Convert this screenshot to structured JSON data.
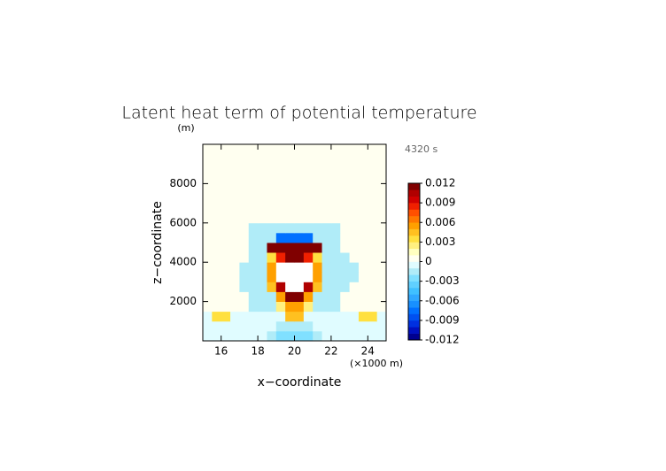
{
  "chart_data": {
    "type": "heatmap",
    "title": "Latent heat term of potential temperature",
    "time_label": "4320 s",
    "x_label": "x−coordinate",
    "x_unit": "(×1000 m)",
    "y_label": "z−coordinate",
    "y_unit": "(m)",
    "xlim": [
      15,
      25
    ],
    "xticks": [
      16,
      18,
      20,
      22,
      24
    ],
    "ylim": [
      0,
      10000
    ],
    "yticks": [
      2000,
      4000,
      6000,
      8000
    ],
    "x": [
      15.25,
      15.75,
      16.25,
      16.75,
      17.25,
      17.75,
      18.25,
      18.75,
      19.25,
      19.75,
      20.25,
      20.75,
      21.25,
      21.75,
      22.25,
      22.75,
      23.25,
      23.75,
      24.25,
      24.75
    ],
    "y": [
      250,
      750,
      1250,
      1750,
      2250,
      2750,
      3250,
      3750,
      4250,
      4750,
      5250,
      5750,
      6250,
      6750,
      7250,
      7750,
      8250,
      8750,
      9250,
      9750
    ],
    "z": [
      [
        -0.0005,
        -0.0005,
        -0.0005,
        -0.0005,
        -0.0005,
        -0.0005,
        -0.0005,
        -0.0015,
        -0.0025,
        -0.0025,
        -0.0025,
        -0.0025,
        -0.0015,
        -0.0005,
        -0.0005,
        -0.0005,
        -0.0005,
        -0.0005,
        -0.0005,
        -0.0005
      ],
      [
        -0.0005,
        -0.0005,
        -0.0005,
        -0.0005,
        -0.0005,
        -0.0005,
        -0.0005,
        -0.0005,
        -0.0015,
        -0.0015,
        -0.0015,
        -0.0015,
        -0.0005,
        -0.0005,
        -0.0005,
        -0.0005,
        -0.0005,
        -0.0005,
        -0.0005,
        -0.0005
      ],
      [
        -0.0005,
        0.003,
        0.003,
        -0.0005,
        -0.0005,
        -0.0005,
        -0.0005,
        -0.0005,
        -0.0005,
        0.004,
        0.004,
        -0.0005,
        -0.0005,
        -0.0005,
        -0.0005,
        -0.0005,
        -0.0005,
        0.003,
        0.003,
        -0.0005
      ],
      [
        0.0005,
        0.0005,
        0.0005,
        0.0005,
        0.0005,
        -0.0015,
        -0.0015,
        -0.0015,
        0.002,
        0.005,
        0.005,
        0.002,
        -0.0015,
        -0.0015,
        -0.0015,
        0.0005,
        0.0005,
        0.0005,
        0.0005,
        0.0005
      ],
      [
        0.0005,
        0.0005,
        0.0005,
        0.0005,
        0.0005,
        -0.0015,
        -0.0015,
        -0.0015,
        0.005,
        0.011,
        0.011,
        0.005,
        -0.0015,
        -0.0015,
        -0.0015,
        0.0005,
        0.0005,
        0.0005,
        0.0005,
        0.0005
      ],
      [
        0.0005,
        0.0005,
        0.0005,
        0.0005,
        -0.0015,
        -0.0015,
        -0.0015,
        0.004,
        0.01,
        0.015,
        0.015,
        0.01,
        0.004,
        -0.0015,
        -0.0015,
        -0.0015,
        0.0005,
        0.0005,
        0.0005,
        0.0005
      ],
      [
        0.0005,
        0.0005,
        0.0005,
        0.0005,
        -0.0015,
        -0.0015,
        -0.0015,
        0.005,
        0.012,
        0.02,
        0.02,
        0.012,
        0.005,
        -0.0015,
        -0.0015,
        -0.0015,
        -0.0015,
        0.0005,
        0.0005,
        0.0005
      ],
      [
        0.0005,
        0.0005,
        0.0005,
        0.0005,
        -0.0015,
        -0.0015,
        -0.0015,
        0.005,
        0.012,
        0.02,
        0.02,
        0.012,
        0.005,
        -0.0015,
        -0.0015,
        -0.0015,
        -0.0015,
        0.0005,
        0.0005,
        0.0005
      ],
      [
        0.0005,
        0.0005,
        0.0005,
        0.0005,
        0.0005,
        -0.0015,
        -0.0015,
        0.003,
        0.008,
        0.011,
        0.011,
        0.008,
        0.003,
        -0.0015,
        -0.0015,
        -0.0015,
        0.0005,
        0.0005,
        0.0005,
        0.0005
      ],
      [
        0.0005,
        0.0005,
        0.0005,
        0.0005,
        0.0005,
        -0.0015,
        -0.0015,
        0.011,
        0.011,
        0.011,
        0.011,
        0.011,
        0.011,
        -0.0015,
        -0.0015,
        0.0005,
        0.0005,
        0.0005,
        0.0005,
        0.0005
      ],
      [
        0.0005,
        0.0005,
        0.0005,
        0.0005,
        0.0005,
        -0.0015,
        -0.0015,
        -0.0015,
        -0.008,
        -0.008,
        -0.008,
        -0.008,
        -0.0015,
        -0.0015,
        -0.0015,
        0.0005,
        0.0005,
        0.0005,
        0.0005,
        0.0005
      ],
      [
        0.0005,
        0.0005,
        0.0005,
        0.0005,
        0.0005,
        -0.0015,
        -0.0015,
        -0.0015,
        -0.0015,
        -0.0015,
        -0.0015,
        -0.0015,
        -0.0015,
        -0.0015,
        -0.0015,
        0.0005,
        0.0005,
        0.0005,
        0.0005,
        0.0005
      ],
      [
        0.0005,
        0.0005,
        0.0005,
        0.0005,
        0.0005,
        0.0005,
        0.0005,
        0.0005,
        0.0005,
        0.0005,
        0.0005,
        0.0005,
        0.0005,
        0.0005,
        0.0005,
        0.0005,
        0.0005,
        0.0005,
        0.0005,
        0.0005
      ],
      [
        0.0005,
        0.0005,
        0.0005,
        0.0005,
        0.0005,
        0.0005,
        0.0005,
        0.0005,
        0.0005,
        0.0005,
        0.0005,
        0.0005,
        0.0005,
        0.0005,
        0.0005,
        0.0005,
        0.0005,
        0.0005,
        0.0005,
        0.0005
      ],
      [
        0.0005,
        0.0005,
        0.0005,
        0.0005,
        0.0005,
        0.0005,
        0.0005,
        0.0005,
        0.0005,
        0.0005,
        0.0005,
        0.0005,
        0.0005,
        0.0005,
        0.0005,
        0.0005,
        0.0005,
        0.0005,
        0.0005,
        0.0005
      ],
      [
        0.0005,
        0.0005,
        0.0005,
        0.0005,
        0.0005,
        0.0005,
        0.0005,
        0.0005,
        0.0005,
        0.0005,
        0.0005,
        0.0005,
        0.0005,
        0.0005,
        0.0005,
        0.0005,
        0.0005,
        0.0005,
        0.0005,
        0.0005
      ],
      [
        0.0005,
        0.0005,
        0.0005,
        0.0005,
        0.0005,
        0.0005,
        0.0005,
        0.0005,
        0.0005,
        0.0005,
        0.0005,
        0.0005,
        0.0005,
        0.0005,
        0.0005,
        0.0005,
        0.0005,
        0.0005,
        0.0005,
        0.0005
      ],
      [
        0.0005,
        0.0005,
        0.0005,
        0.0005,
        0.0005,
        0.0005,
        0.0005,
        0.0005,
        0.0005,
        0.0005,
        0.0005,
        0.0005,
        0.0005,
        0.0005,
        0.0005,
        0.0005,
        0.0005,
        0.0005,
        0.0005,
        0.0005
      ],
      [
        0.0005,
        0.0005,
        0.0005,
        0.0005,
        0.0005,
        0.0005,
        0.0005,
        0.0005,
        0.0005,
        0.0005,
        0.0005,
        0.0005,
        0.0005,
        0.0005,
        0.0005,
        0.0005,
        0.0005,
        0.0005,
        0.0005,
        0.0005
      ],
      [
        0.0005,
        0.0005,
        0.0005,
        0.0005,
        0.0005,
        0.0005,
        0.0005,
        0.0005,
        0.0005,
        0.0005,
        0.0005,
        0.0005,
        0.0005,
        0.0005,
        0.0005,
        0.0005,
        0.0005,
        0.0005,
        0.0005,
        0.0005
      ]
    ],
    "clim": [
      -0.012,
      0.012
    ],
    "cticks": [
      -0.012,
      -0.009,
      -0.006,
      -0.003,
      0,
      0.003,
      0.006,
      0.009,
      0.012
    ],
    "colors": [
      "#000090",
      "#0010c0",
      "#0030e0",
      "#0050f0",
      "#0070ff",
      "#1890ff",
      "#30a8ff",
      "#40c0ff",
      "#60d0ff",
      "#80e0ff",
      "#b0ecf8",
      "#e0fcff",
      "#fffff0",
      "#ffffc0",
      "#fff080",
      "#ffe040",
      "#ffc020",
      "#ffa000",
      "#ff7800",
      "#ff5000",
      "#f02000",
      "#d00000",
      "#b00000",
      "#800000"
    ],
    "over_color": "#ffffff",
    "under_color": "#000060"
  }
}
